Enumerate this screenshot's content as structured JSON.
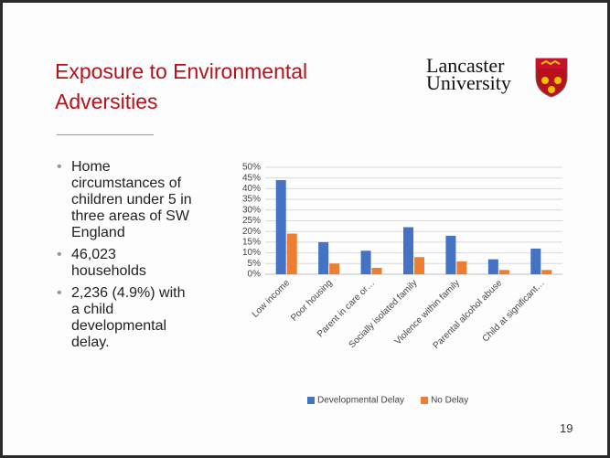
{
  "header": {
    "title": "Exposure to Environmental Adversities"
  },
  "logo": {
    "line1": "Lancaster",
    "line2": "University"
  },
  "bullets": [
    "Home circumstances of children under 5 in three areas of SW England",
    "46,023 households",
    "2,236 (4.9%) with a child developmental delay."
  ],
  "page_number": "19",
  "chart_data": {
    "type": "bar",
    "categories": [
      "Low income",
      "Poor housing",
      "Parent in care or…",
      "Socially isolated family",
      "Violence within family",
      "Parental alcohol abuse",
      "Child at significant…"
    ],
    "series": [
      {
        "name": "Developmental Delay",
        "color": "#4472c4",
        "values": [
          44,
          15,
          11,
          22,
          18,
          7,
          12
        ]
      },
      {
        "name": "No Delay",
        "color": "#ed7d31",
        "values": [
          19,
          5,
          3,
          8,
          6,
          2,
          2
        ]
      }
    ],
    "ylim": [
      0,
      50
    ],
    "yticks": [
      {
        "value": 0,
        "label": "0%"
      },
      {
        "value": 5,
        "label": "5%"
      },
      {
        "value": 10,
        "label": "10%"
      },
      {
        "value": 15,
        "label": "15%"
      },
      {
        "value": 20,
        "label": "20%"
      },
      {
        "value": 25,
        "label": "25%"
      },
      {
        "value": 30,
        "label": "30%"
      },
      {
        "value": 35,
        "label": "35%"
      },
      {
        "value": 40,
        "label": "40%"
      },
      {
        "value": 45,
        "label": "45%"
      },
      {
        "value": 50,
        "label": "50%"
      }
    ],
    "grid": true,
    "legend": "bottom"
  }
}
